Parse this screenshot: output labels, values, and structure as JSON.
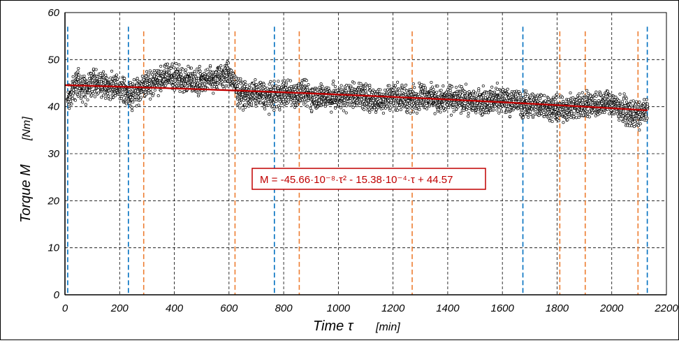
{
  "chart_data": {
    "type": "scatter",
    "title": "",
    "xlabel": {
      "symbol": "Time τ",
      "unit": "[min]"
    },
    "ylabel": {
      "symbol": "Torque M",
      "unit": "[Nm]"
    },
    "xlim": [
      0,
      2200
    ],
    "ylim": [
      0,
      60
    ],
    "xticks": [
      "0",
      "200",
      "400",
      "600",
      "800",
      "1000",
      "1200",
      "1400",
      "1600",
      "1800",
      "2000",
      "2200"
    ],
    "yticks": [
      "0",
      "10",
      "20",
      "30",
      "40",
      "50",
      "60"
    ],
    "grid": true,
    "series": [
      {
        "kind": "scatter",
        "color": "#000000",
        "points": [
          [
            10,
            41.6
          ],
          [
            40,
            45.1
          ],
          [
            60,
            44.4
          ],
          [
            80,
            44.0
          ],
          [
            100,
            45.6
          ],
          [
            120,
            45.0
          ],
          [
            150,
            44.5
          ],
          [
            180,
            44.0
          ],
          [
            210,
            43.8
          ],
          [
            240,
            42.2
          ],
          [
            270,
            43.8
          ],
          [
            300,
            44.6
          ],
          [
            330,
            45.6
          ],
          [
            360,
            46.0
          ],
          [
            390,
            46.6
          ],
          [
            420,
            45.6
          ],
          [
            450,
            45.8
          ],
          [
            480,
            45.4
          ],
          [
            510,
            45.8
          ],
          [
            540,
            46.0
          ],
          [
            570,
            46.2
          ],
          [
            600,
            47.0
          ],
          [
            630,
            43.4
          ],
          [
            660,
            42.4
          ],
          [
            690,
            42.8
          ],
          [
            720,
            42.6
          ],
          [
            750,
            42.0
          ],
          [
            780,
            42.4
          ],
          [
            810,
            43.0
          ],
          [
            840,
            42.6
          ],
          [
            870,
            43.0
          ],
          [
            900,
            42.2
          ],
          [
            930,
            42.0
          ],
          [
            960,
            42.4
          ],
          [
            990,
            41.8
          ],
          [
            1020,
            42.0
          ],
          [
            1050,
            42.8
          ],
          [
            1080,
            42.4
          ],
          [
            1110,
            41.8
          ],
          [
            1140,
            41.2
          ],
          [
            1170,
            41.8
          ],
          [
            1200,
            42.4
          ],
          [
            1230,
            42.0
          ],
          [
            1260,
            41.6
          ],
          [
            1290,
            42.0
          ],
          [
            1320,
            42.4
          ],
          [
            1350,
            41.6
          ],
          [
            1380,
            41.2
          ],
          [
            1410,
            41.8
          ],
          [
            1440,
            41.4
          ],
          [
            1470,
            41.2
          ],
          [
            1500,
            41.0
          ],
          [
            1530,
            41.2
          ],
          [
            1560,
            41.4
          ],
          [
            1590,
            41.6
          ],
          [
            1620,
            41.0
          ],
          [
            1650,
            41.2
          ],
          [
            1680,
            40.2
          ],
          [
            1710,
            40.6
          ],
          [
            1740,
            40.4
          ],
          [
            1770,
            40.0
          ],
          [
            1800,
            39.4
          ],
          [
            1830,
            39.6
          ],
          [
            1860,
            40.0
          ],
          [
            1890,
            40.2
          ],
          [
            1920,
            40.8
          ],
          [
            1950,
            40.4
          ],
          [
            1980,
            41.0
          ],
          [
            2010,
            40.6
          ],
          [
            2040,
            39.4
          ],
          [
            2070,
            38.4
          ],
          [
            2100,
            38.0
          ],
          [
            2130,
            39.6
          ]
        ]
      },
      {
        "kind": "fit",
        "color": "#c00000",
        "x": [
          0,
          2130
        ],
        "equation": "M = -45.66·10⁻⁸·τ² - 15.38·10⁻⁴·τ + 44.57",
        "coefficients": {
          "a": -4.566e-07,
          "b": -0.001538,
          "c": 44.57
        }
      }
    ],
    "vlines_blue": [
      10,
      232,
      766,
      1675,
      2130
    ],
    "vlines_orange": [
      288,
      622,
      857,
      1270,
      1810,
      1903,
      2096
    ],
    "vline_style": "dashed",
    "colors": {
      "blue_lines": "#0070c0",
      "orange_lines": "#ed7d31",
      "grid": "#000000"
    }
  }
}
